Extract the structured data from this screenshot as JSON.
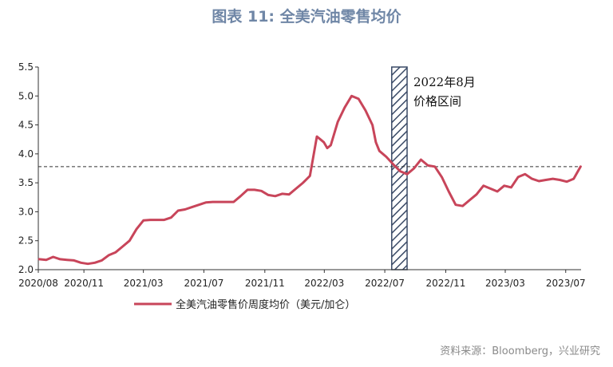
{
  "chart_data": {
    "type": "line",
    "title": "图表 11: 全美汽油零售均价",
    "xlabel": "",
    "ylabel": "",
    "ylim": [
      2.0,
      5.5
    ],
    "yticks": [
      "2.0",
      "2.5",
      "3.0",
      "3.5",
      "4.0",
      "4.5",
      "5.0",
      "5.5"
    ],
    "x_tick_labels": [
      "2020/08",
      "2020/11",
      "2021/03",
      "2021/07",
      "2021/11",
      "2022/03",
      "2022/07",
      "2022/11",
      "2023/03",
      "2023/07"
    ],
    "grid": false,
    "legend_position": "bottom",
    "series": [
      {
        "name": "全美汽油零售价周度均价（美元/加仑）",
        "color": "#c8455a",
        "x": [
          "2020-08-03",
          "2020-08-17",
          "2020-08-31",
          "2020-09-14",
          "2020-09-28",
          "2020-10-12",
          "2020-10-26",
          "2020-11-09",
          "2020-11-23",
          "2020-12-07",
          "2020-12-21",
          "2021-01-04",
          "2021-01-18",
          "2021-02-01",
          "2021-02-15",
          "2021-03-01",
          "2021-03-15",
          "2021-03-29",
          "2021-04-12",
          "2021-04-26",
          "2021-05-10",
          "2021-05-24",
          "2021-06-07",
          "2021-06-21",
          "2021-07-05",
          "2021-07-19",
          "2021-08-02",
          "2021-08-16",
          "2021-08-30",
          "2021-09-13",
          "2021-09-27",
          "2021-10-11",
          "2021-10-25",
          "2021-11-08",
          "2021-11-22",
          "2021-12-06",
          "2021-12-20",
          "2022-01-03",
          "2022-01-17",
          "2022-01-31",
          "2022-02-14",
          "2022-02-21",
          "2022-02-28",
          "2022-03-07",
          "2022-03-14",
          "2022-03-28",
          "2022-04-11",
          "2022-04-25",
          "2022-05-09",
          "2022-05-23",
          "2022-06-06",
          "2022-06-13",
          "2022-06-20",
          "2022-07-04",
          "2022-07-18",
          "2022-08-01",
          "2022-08-15",
          "2022-08-29",
          "2022-09-12",
          "2022-09-26",
          "2022-10-10",
          "2022-10-24",
          "2022-11-07",
          "2022-11-21",
          "2022-12-05",
          "2022-12-19",
          "2023-01-02",
          "2023-01-16",
          "2023-01-30",
          "2023-02-13",
          "2023-02-27",
          "2023-03-13",
          "2023-03-27",
          "2023-04-10",
          "2023-04-24",
          "2023-05-08",
          "2023-05-22",
          "2023-06-05",
          "2023-06-19",
          "2023-07-03",
          "2023-07-17",
          "2023-07-31"
        ],
        "values": [
          2.18,
          2.17,
          2.22,
          2.18,
          2.17,
          2.16,
          2.12,
          2.1,
          2.12,
          2.16,
          2.25,
          2.3,
          2.4,
          2.5,
          2.7,
          2.85,
          2.86,
          2.86,
          2.86,
          2.9,
          3.02,
          3.04,
          3.08,
          3.12,
          3.16,
          3.17,
          3.17,
          3.17,
          3.17,
          3.27,
          3.38,
          3.38,
          3.36,
          3.29,
          3.27,
          3.31,
          3.3,
          3.4,
          3.5,
          3.62,
          4.3,
          4.25,
          4.2,
          4.1,
          4.15,
          4.55,
          4.8,
          5.0,
          4.95,
          4.75,
          4.5,
          4.2,
          4.05,
          3.95,
          3.82,
          3.7,
          3.65,
          3.75,
          3.9,
          3.8,
          3.78,
          3.6,
          3.35,
          3.12,
          3.1,
          3.2,
          3.3,
          3.45,
          3.4,
          3.35,
          3.45,
          3.42,
          3.6,
          3.65,
          3.57,
          3.53,
          3.55,
          3.57,
          3.55,
          3.52,
          3.57,
          3.78
        ]
      }
    ],
    "reference_line": {
      "y": 3.78,
      "style": "dashed"
    },
    "highlight_period": {
      "start": "2022-07-15",
      "end": "2022-08-15",
      "pattern": "hatched"
    },
    "annotation": {
      "line1": "2022年8月",
      "line2": "价格区间"
    }
  },
  "source": "资料来源：Bloomberg，兴业研究"
}
